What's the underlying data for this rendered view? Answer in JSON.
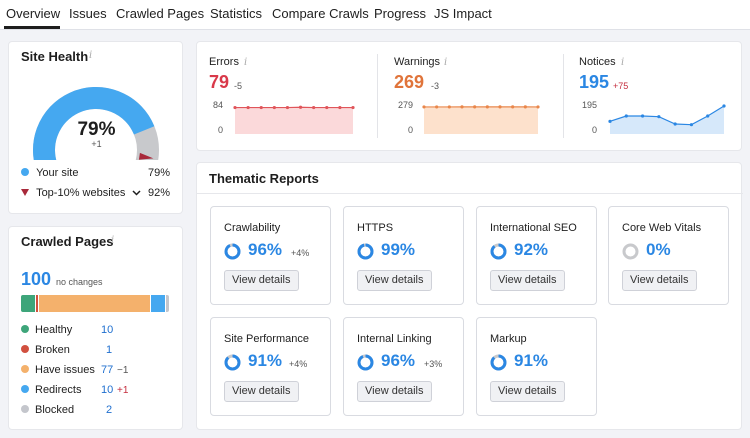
{
  "nav": {
    "tabs": [
      {
        "label": "Overview",
        "active": true
      },
      {
        "label": "Issues"
      },
      {
        "label": "Crawled Pages"
      },
      {
        "label": "Statistics"
      },
      {
        "label": "Compare Crawls"
      },
      {
        "label": "Progress"
      },
      {
        "label": "JS Impact"
      }
    ]
  },
  "site_health": {
    "title": "Site Health",
    "score": "79%",
    "score_value": 79,
    "delta": "+1",
    "your_site_label": "Your site",
    "your_site_value": "79%",
    "top10_label": "Top-10% websites",
    "top10_value": "92%",
    "top10_marker_value": 92,
    "colors": {
      "your_site": "#45a8f0",
      "top10": "#a8293a",
      "remaining": "#c8c9cc"
    }
  },
  "crawled_pages": {
    "title": "Crawled Pages",
    "total": "100",
    "total_note": "no changes",
    "rows": [
      {
        "label": "Healthy",
        "value": "10",
        "delta": "",
        "color": "#3ea57a",
        "share": 10
      },
      {
        "label": "Broken",
        "value": "1",
        "delta": "",
        "color": "#d1503f",
        "share": 1
      },
      {
        "label": "Have issues",
        "value": "77",
        "delta": "−1",
        "color": "#f4b16c",
        "share": 77
      },
      {
        "label": "Redirects",
        "value": "10",
        "delta": "+1",
        "color": "#45a8f0",
        "share": 10
      },
      {
        "label": "Blocked",
        "value": "2",
        "delta": "",
        "color": "#c4c6cc",
        "share": 2
      }
    ]
  },
  "metrics": {
    "errors": {
      "label": "Errors",
      "value": "79",
      "delta": "-5",
      "ymax": "84",
      "ymin": "0",
      "color": "#e0555a",
      "fill": "#fbd9da",
      "points": [
        79,
        79,
        79,
        79,
        79,
        80,
        79,
        79,
        79,
        79
      ]
    },
    "warnings": {
      "label": "Warnings",
      "value": "269",
      "delta": "-3",
      "ymax": "279",
      "ymin": "0",
      "color": "#e9874b",
      "fill": "#fde1cc",
      "points": [
        269,
        269,
        269,
        270,
        270,
        270,
        270,
        270,
        270,
        269
      ]
    },
    "notices": {
      "label": "Notices",
      "value": "195",
      "delta": "+75",
      "ymax": "195",
      "ymin": "0",
      "color": "#2b87e3",
      "fill": "#d6e8fa",
      "points": [
        80,
        120,
        120,
        115,
        60,
        55,
        120,
        195
      ]
    }
  },
  "thematic": {
    "title": "Thematic Reports",
    "button_label": "View details",
    "reports": [
      {
        "name": "Crawlability",
        "pct": "96%",
        "value": 96,
        "delta": "+4%"
      },
      {
        "name": "HTTPS",
        "pct": "99%",
        "value": 99,
        "delta": ""
      },
      {
        "name": "International SEO",
        "pct": "92%",
        "value": 92,
        "delta": ""
      },
      {
        "name": "Core Web Vitals",
        "pct": "0%",
        "value": 0,
        "delta": ""
      },
      {
        "name": "Site Performance",
        "pct": "91%",
        "value": 91,
        "delta": "+4%"
      },
      {
        "name": "Internal Linking",
        "pct": "96%",
        "value": 96,
        "delta": "+3%"
      },
      {
        "name": "Markup",
        "pct": "91%",
        "value": 91,
        "delta": ""
      }
    ]
  }
}
